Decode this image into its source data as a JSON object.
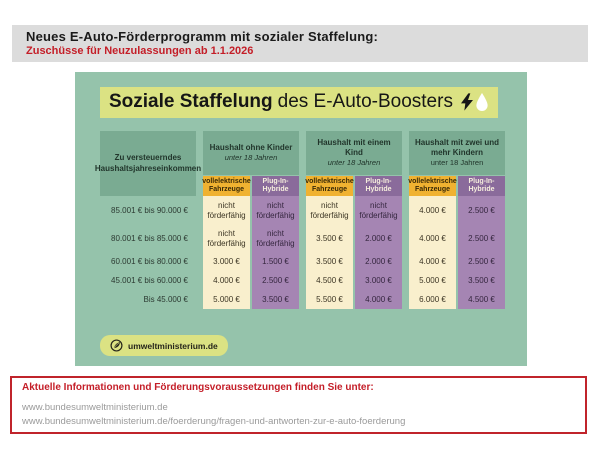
{
  "header": {
    "title": "Neues E-Auto-Förderprogramm mit sozialer Staffelung:",
    "subtitle": "Zuschüsse für Neuzulassungen ab 1.1.2026"
  },
  "card": {
    "title_bold": "Soziale Staffelung",
    "title_rest": "des E-Auto-Boosters",
    "badge_label": "umweltministerium.de"
  },
  "chart_data": {
    "type": "table",
    "title": "Soziale Staffelung des E-Auto-Boosters",
    "row_label": "Zu versteuerndes Haushaltsjahreseinkommen",
    "column_groups": [
      {
        "title": "Haushalt ohne Kinder",
        "subtitle": "unter 18 Jahren",
        "subtitle_italic": true
      },
      {
        "title": "Haushalt mit einem Kind",
        "subtitle": "unter 18 Jahren",
        "subtitle_italic": true
      },
      {
        "title": "Haushalt mit zwei und mehr Kindern",
        "subtitle": "unter 18 Jahren",
        "subtitle_italic": false
      }
    ],
    "sub_columns": [
      "vollelektrische Fahrzeuge",
      "Plug-In-Hybride"
    ],
    "rows": [
      {
        "income": "85.001 € bis 90.000 €",
        "values": [
          "nicht förderfähig",
          "nicht förderfähig",
          "nicht förderfähig",
          "nicht förderfähig",
          "4.000 €",
          "2.500 €"
        ]
      },
      {
        "income": "80.001 € bis 85.000 €",
        "values": [
          "nicht förderfähig",
          "nicht förderfähig",
          "3.500 €",
          "2.000 €",
          "4.000 €",
          "2.500 €"
        ]
      },
      {
        "income": "60.001 € bis 80.000 €",
        "values": [
          "3.000 €",
          "1.500 €",
          "3.500 €",
          "2.000 €",
          "4.000 €",
          "2.500 €"
        ]
      },
      {
        "income": "45.001 € bis 60.000 €",
        "values": [
          "4.000 €",
          "2.500 €",
          "4.500 €",
          "3.000 €",
          "5.000 €",
          "3.500 €"
        ]
      },
      {
        "income": "Bis 45.000 €",
        "values": [
          "5.000 €",
          "3.500 €",
          "5.500 €",
          "4.000 €",
          "6.000 €",
          "4.500 €"
        ]
      }
    ]
  },
  "footer": {
    "heading": "Aktuelle Informationen und Förderungsvoraussetzungen finden Sie unter:",
    "links": [
      "www.bundesumweltministerium.de",
      "www.bundesumweltministerium.de/foerderung/fragen-und-antworten-zur-e-auto-foerderung"
    ]
  },
  "colors": {
    "card_green": "#95c3ab",
    "header_green": "#7aab92",
    "ev_header_yellow": "#f0b231",
    "ev_cell_cream": "#f9efcd",
    "phev_header_purple": "#8a6b9b",
    "phev_cell_purple": "#a585b3",
    "highlight_yellow_green": "#dbe283",
    "accent_red": "#c41e28",
    "top_bar_gray": "#dcdcdc",
    "url_gray": "#9a9a9a"
  }
}
